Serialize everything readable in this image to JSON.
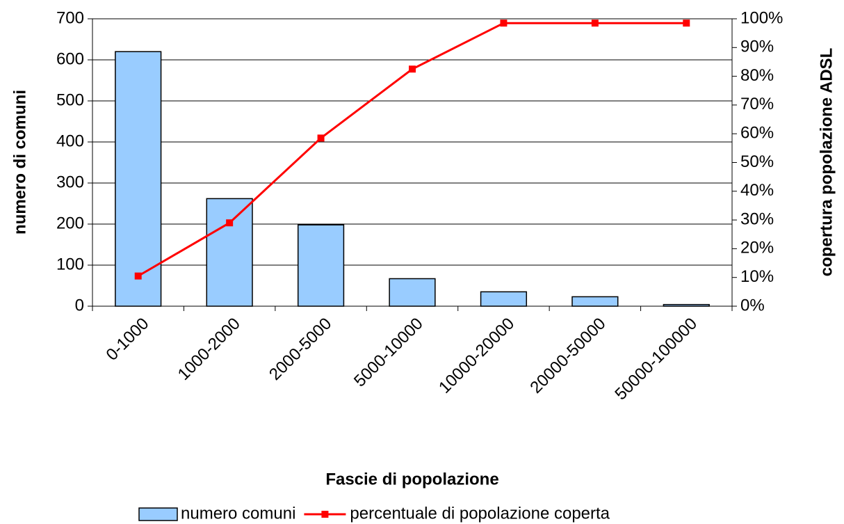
{
  "chart_data": {
    "type": "bar+line",
    "xlabel": "Fascie di popolazione",
    "ylabel": "numero di comuni",
    "y2label": "copertura popolazione ADSL",
    "categories": [
      "0-1000",
      "1000-2000",
      "2000-5000",
      "5000-10000",
      "10000-20000",
      "20000-50000",
      "50000-100000"
    ],
    "series": [
      {
        "name": "numero comuni",
        "type": "bar",
        "color": "#99ccff",
        "values": [
          620,
          262,
          198,
          67,
          35,
          23,
          4
        ]
      },
      {
        "name": "percentuale di popolazione coperta",
        "type": "line",
        "axis": "y2",
        "color": "#ff0000",
        "values": [
          10.5,
          29,
          58.5,
          82.5,
          98.5,
          98.5,
          98.5
        ]
      }
    ],
    "ylim": [
      0,
      700
    ],
    "yticks": [
      0,
      100,
      200,
      300,
      400,
      500,
      600,
      700
    ],
    "y2lim": [
      0,
      100
    ],
    "y2ticks": [
      {
        "value": 0,
        "label": "0%"
      },
      {
        "value": 10,
        "label": "10%"
      },
      {
        "value": 20,
        "label": "20%"
      },
      {
        "value": 30,
        "label": "30%"
      },
      {
        "value": 40,
        "label": "40%"
      },
      {
        "value": 50,
        "label": "50%"
      },
      {
        "value": 60,
        "label": "60%"
      },
      {
        "value": 70,
        "label": "70%"
      },
      {
        "value": 80,
        "label": "80%"
      },
      {
        "value": 90,
        "label": "90%"
      },
      {
        "value": 100,
        "label": "100%"
      }
    ],
    "grid": true,
    "legend": "bottom"
  }
}
